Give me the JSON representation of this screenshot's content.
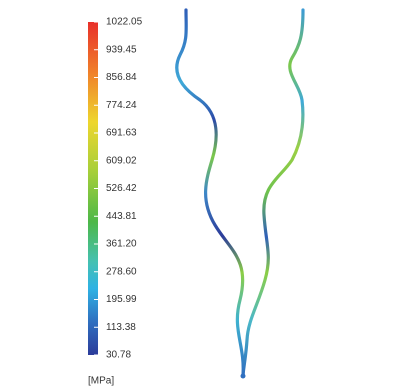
{
  "colorbar": {
    "labels": [
      "1022.05",
      "939.45",
      "856.84",
      "774.24",
      "691.63",
      "609.02",
      "526.42",
      "443.81",
      "361.20",
      "278.60",
      "195.99",
      "113.38",
      "30.78"
    ],
    "unit": "[MPa]"
  }
}
